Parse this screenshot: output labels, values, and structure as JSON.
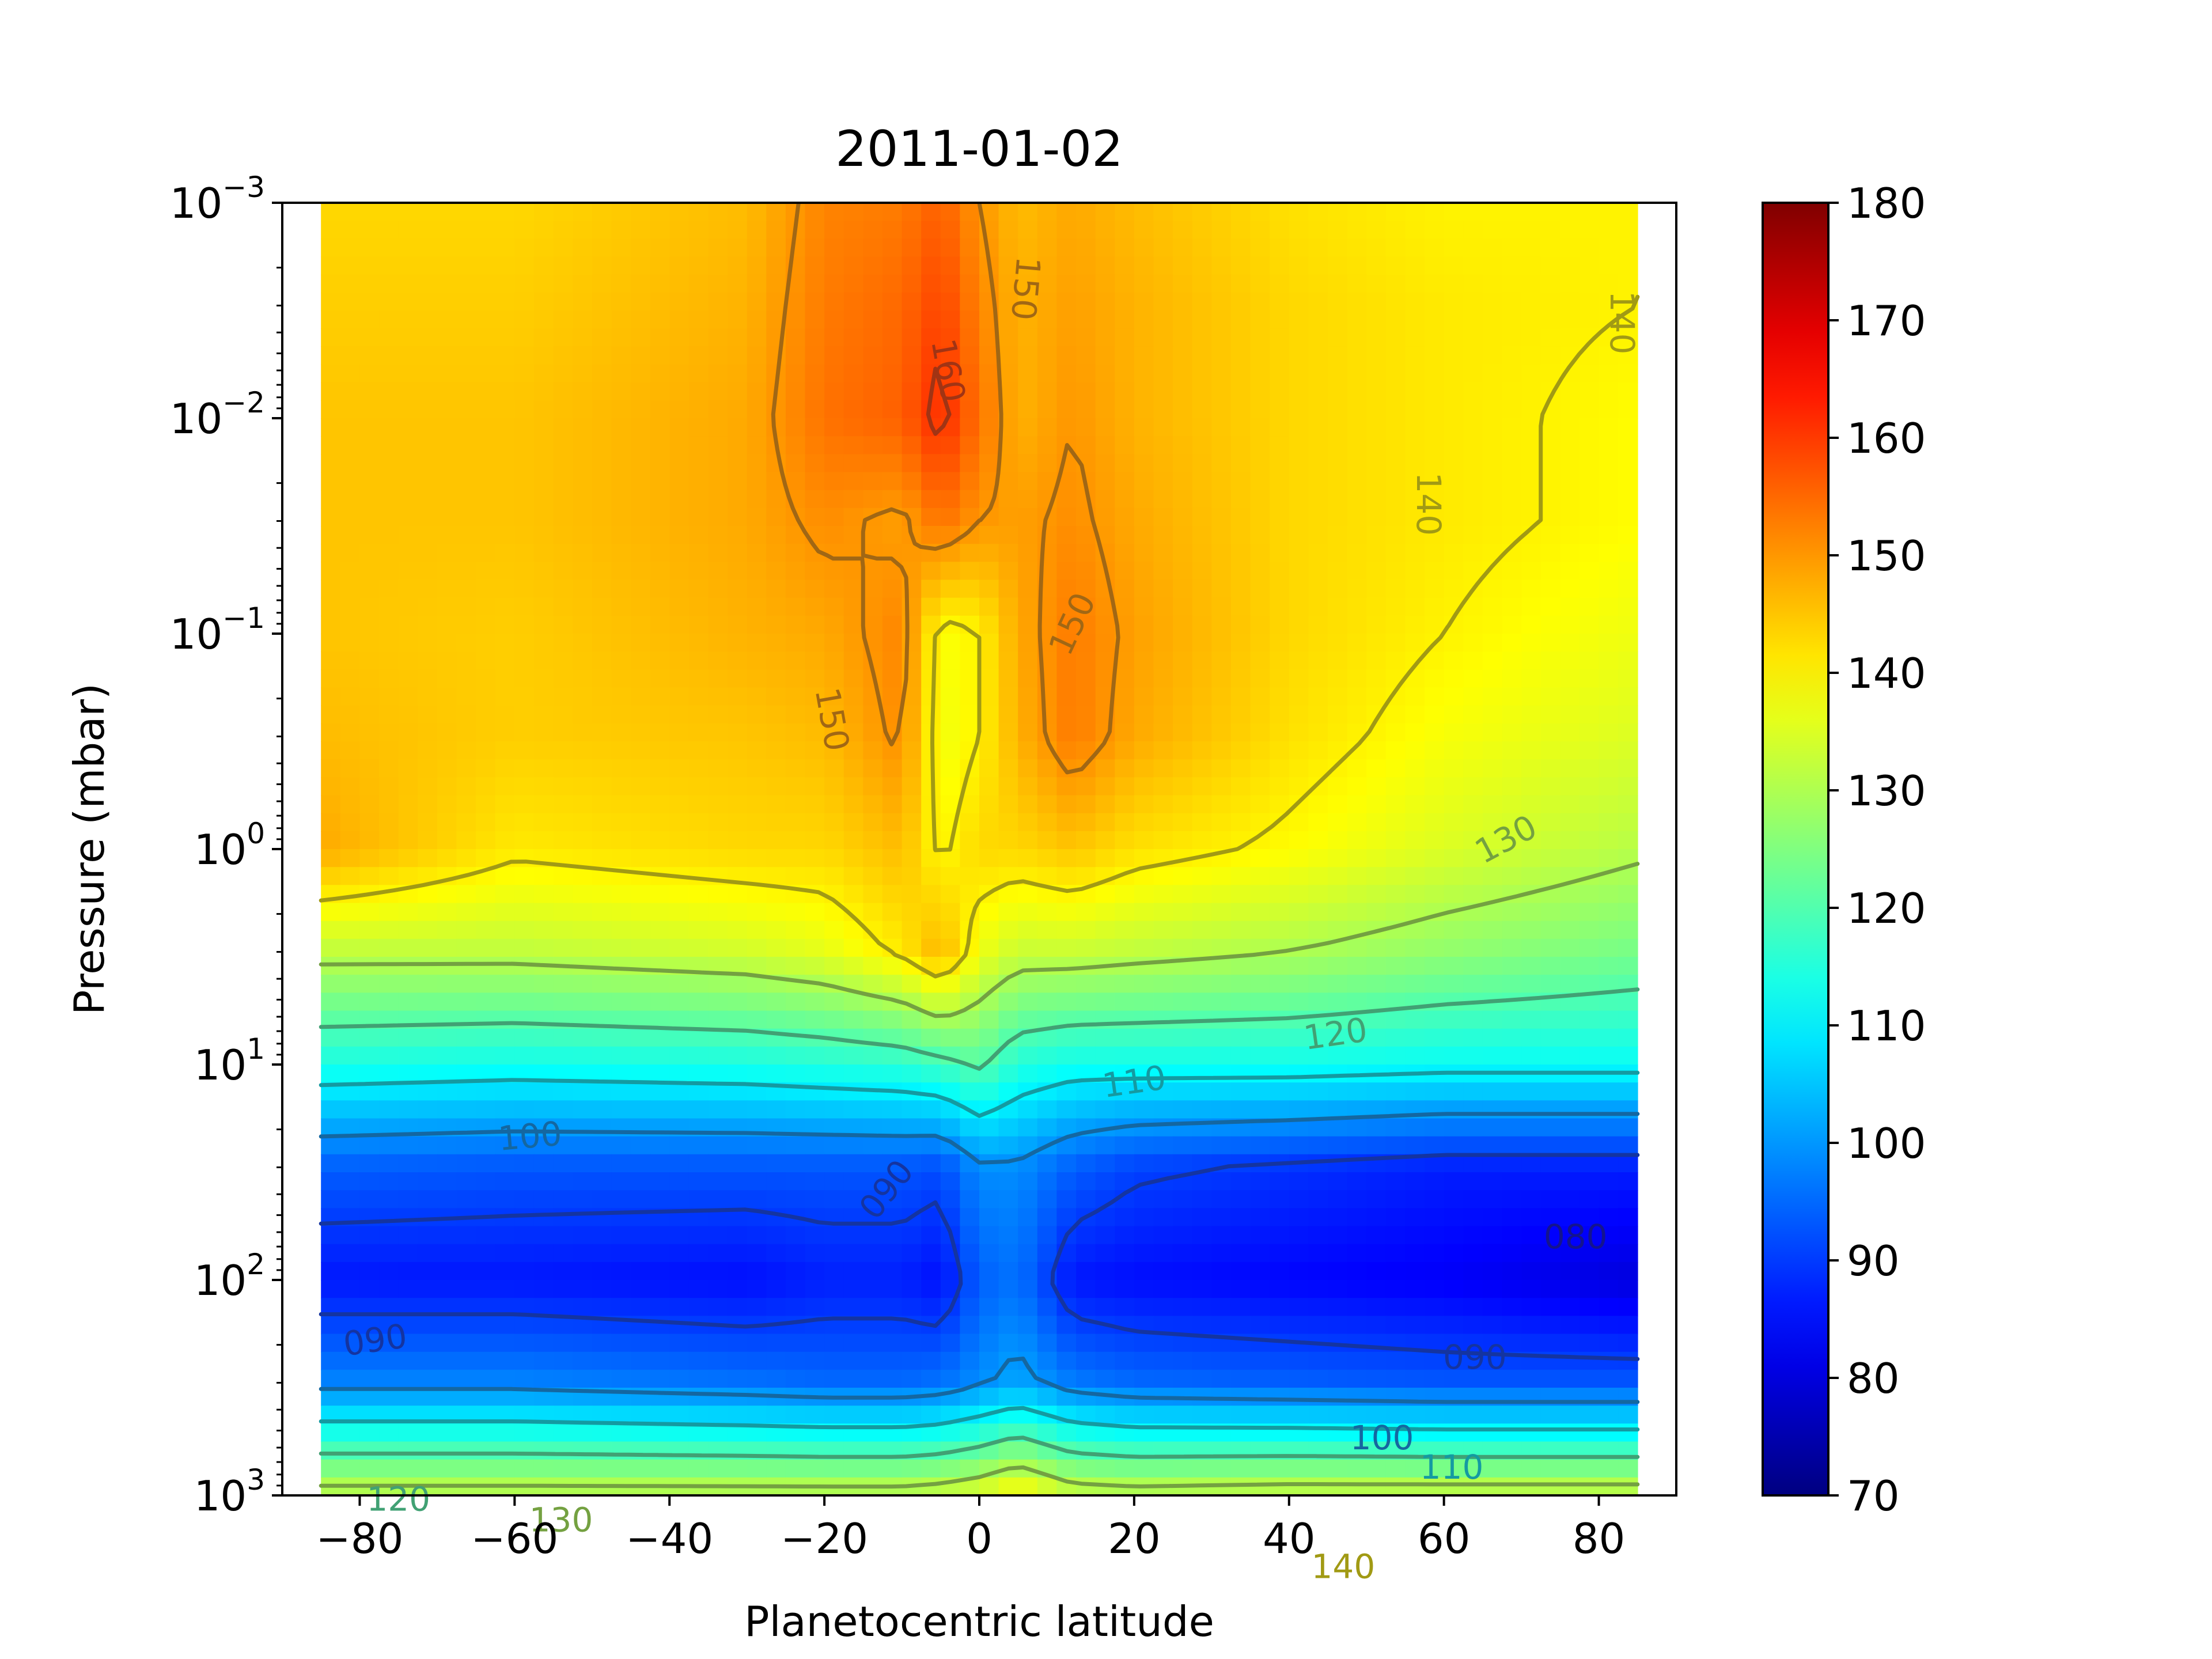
{
  "chart_data": {
    "type": "heatmap",
    "subtype": "filled contour with labeled contour lines",
    "title": "2011-01-02",
    "xlabel": "Planetocentric latitude",
    "ylabel": "Pressure (mbar)",
    "xlim": [
      -90,
      90
    ],
    "data_x_range": [
      -85,
      85
    ],
    "ylim": [
      1000,
      0.001
    ],
    "y_scale": "log",
    "y_inverted": true,
    "colorbar_range": [
      70,
      180
    ],
    "colormap": "jet",
    "x_ticks": [
      -80,
      -60,
      -40,
      -20,
      0,
      20,
      40,
      60,
      80
    ],
    "x_tick_labels": [
      "−80",
      "−60",
      "−40",
      "−20",
      "0",
      "20",
      "40",
      "60",
      "80"
    ],
    "y_ticks": [
      {
        "value": 0.001,
        "base": "10",
        "exp": "−3"
      },
      {
        "value": 0.01,
        "base": "10",
        "exp": "−2"
      },
      {
        "value": 0.1,
        "base": "10",
        "exp": "−1"
      },
      {
        "value": 1,
        "base": "10",
        "exp": "0"
      },
      {
        "value": 10,
        "base": "10",
        "exp": "1"
      },
      {
        "value": 100,
        "base": "10",
        "exp": "2"
      },
      {
        "value": 1000,
        "base": "10",
        "exp": "3"
      }
    ],
    "colorbar_ticks": [
      70,
      80,
      90,
      100,
      110,
      120,
      130,
      140,
      150,
      160,
      170,
      180
    ],
    "colorbar_tick_labels": [
      "70",
      "80",
      "90",
      "100",
      "110",
      "120",
      "130",
      "140",
      "150",
      "160",
      "170",
      "180"
    ],
    "contour_levels": [
      80,
      90,
      100,
      110,
      120,
      130,
      140,
      150,
      160
    ],
    "contour_labels": [
      {
        "text": "160",
        "lat": -4,
        "p": 0.006,
        "angle": 80
      },
      {
        "text": "150",
        "lat": 6,
        "p": 0.0025,
        "angle": 95
      },
      {
        "text": "150",
        "lat": 12,
        "p": 0.09,
        "angle": -65
      },
      {
        "text": "150",
        "lat": -19,
        "p": 0.25,
        "angle": 80
      },
      {
        "text": "140",
        "lat": 58,
        "p": 0.025,
        "angle": 90
      },
      {
        "text": "140",
        "lat": 83,
        "p": 0.0036,
        "angle": 90
      },
      {
        "text": "130",
        "lat": 68,
        "p": 0.9,
        "angle": -28
      },
      {
        "text": "120",
        "lat": 46,
        "p": 7.2,
        "angle": -8
      },
      {
        "text": "110",
        "lat": 20,
        "p": 12,
        "angle": -8
      },
      {
        "text": "100",
        "lat": -58,
        "p": 21.5,
        "angle": -5
      },
      {
        "text": "090",
        "lat": -12,
        "p": 38,
        "angle": -52
      },
      {
        "text": "080",
        "lat": 77,
        "p": 63,
        "angle": 0
      },
      {
        "text": "090",
        "lat": -78,
        "p": 190,
        "angle": -8
      },
      {
        "text": "090",
        "lat": 64,
        "p": 228,
        "angle": 0
      },
      {
        "text": "100",
        "lat": 52,
        "p": 540,
        "angle": 0
      },
      {
        "text": "110",
        "lat": 61,
        "p": 740,
        "angle": 0
      },
      {
        "text": "120",
        "lat": -75,
        "p": 1040,
        "angle": 0
      },
      {
        "text": "130",
        "lat": -54,
        "p": 1300,
        "angle": 0
      },
      {
        "text": "140",
        "lat": 47,
        "p": 2140,
        "angle": 0
      }
    ],
    "temperature_profiles": {
      "p_levels": [
        0.001,
        0.003,
        0.01,
        0.03,
        0.1,
        0.3,
        1,
        3,
        10,
        30,
        100,
        300,
        1000
      ],
      "lat_nodes": [
        -85,
        -60,
        -30,
        -20,
        -10,
        -5,
        0,
        5,
        12,
        20,
        40,
        60,
        85
      ],
      "rows": [
        [
          143,
          143,
          146,
          152,
          153,
          156,
          150,
          146,
          148,
          146,
          142,
          140,
          140
        ],
        [
          144,
          144,
          147,
          153,
          155,
          159,
          152,
          147,
          149,
          147,
          143,
          141,
          140
        ],
        [
          145,
          145,
          148,
          154,
          156,
          162,
          154,
          147,
          150,
          147,
          143,
          141,
          139
        ],
        [
          145,
          145,
          148,
          151,
          149,
          154,
          150,
          149,
          151,
          148,
          143,
          141,
          139
        ],
        [
          145,
          144,
          147,
          148,
          152,
          138,
          140,
          148,
          153,
          149,
          143,
          140,
          137
        ],
        [
          146,
          144,
          145,
          146,
          151,
          137,
          140,
          147,
          153,
          148,
          142,
          138,
          135
        ],
        [
          148,
          141,
          143,
          143,
          146,
          139,
          143,
          143,
          145,
          142,
          139,
          135,
          131
        ],
        [
          132,
          132,
          134,
          136,
          141,
          147,
          137,
          133,
          133,
          132,
          130,
          127,
          124
        ],
        [
          114,
          113,
          114,
          115,
          116,
          118,
          121,
          115,
          113,
          113,
          113,
          112,
          112
        ],
        [
          94,
          93,
          93,
          93,
          93,
          92,
          99,
          99,
          94,
          91,
          89,
          87,
          87
        ],
        [
          86,
          86,
          85,
          87,
          87,
          85,
          94,
          96,
          86,
          85,
          84,
          83,
          80
        ],
        [
          98,
          98,
          96,
          95,
          95,
          96,
          99,
          102,
          97,
          95,
          94,
          93,
          93
        ],
        [
          133,
          133,
          133,
          133,
          133,
          134,
          136,
          140,
          134,
          133,
          134,
          134,
          134
        ]
      ]
    }
  }
}
